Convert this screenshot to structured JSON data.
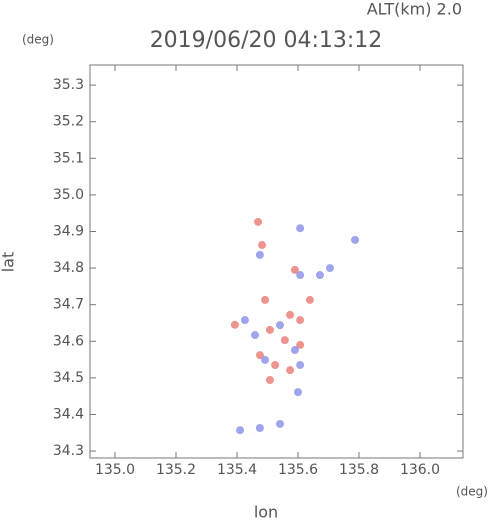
{
  "chart_data": {
    "type": "scatter",
    "title": "2019/06/20 04:13:12",
    "subtitle": "ALT(km) 2.0",
    "x_label": "lon",
    "y_label": "lat",
    "x_unit": "(deg)",
    "y_unit": "(deg)",
    "xlim": [
      134.918,
      136.141
    ],
    "ylim": [
      34.281,
      35.355
    ],
    "xticks": [
      {
        "value": 135.0,
        "label": "135.0"
      },
      135.2,
      135.4,
      135.6,
      135.8,
      {
        "value": 136.0,
        "label": "136.0"
      }
    ],
    "yticks": [
      35.3,
      35.2,
      35.1,
      {
        "value": 35.0,
        "label": "35.0"
      },
      34.9,
      34.8,
      34.7,
      34.6,
      34.5,
      34.4,
      34.3
    ],
    "series": [
      {
        "color": "#e8706a",
        "x": [
          135.469,
          135.482,
          135.59,
          135.492,
          135.574,
          135.607,
          135.508,
          135.557,
          135.607,
          135.475,
          135.525,
          135.574,
          135.508,
          135.393,
          135.639
        ],
        "y": [
          34.926,
          34.863,
          34.795,
          34.713,
          34.672,
          34.658,
          34.631,
          34.603,
          34.59,
          34.562,
          34.535,
          34.521,
          34.494,
          34.645,
          34.713
        ]
      },
      {
        "color": "#7f86e6",
        "x": [
          135.607,
          135.787,
          135.475,
          135.607,
          135.672,
          135.426,
          135.541,
          135.459,
          135.59,
          135.492,
          135.607,
          135.6,
          135.41,
          135.475,
          135.541,
          135.705
        ],
        "y": [
          34.909,
          34.877,
          34.836,
          34.781,
          34.781,
          34.658,
          34.644,
          34.617,
          34.576,
          34.549,
          34.535,
          34.461,
          34.357,
          34.363,
          34.374,
          34.8
        ]
      }
    ]
  }
}
